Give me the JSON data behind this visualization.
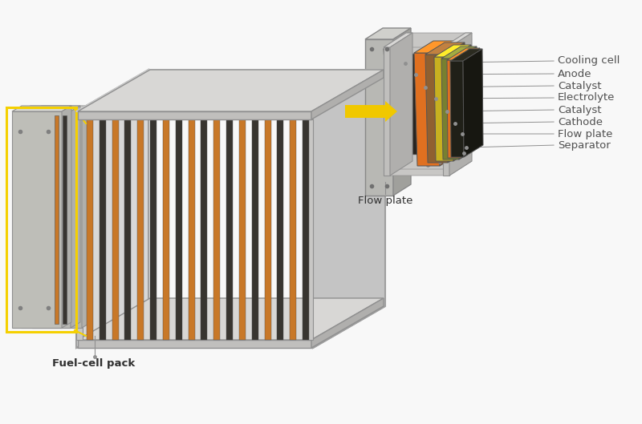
{
  "background_color": "#f8f8f8",
  "fig_width": 8.0,
  "fig_height": 5.29,
  "label_fuel_cell_pack": "Fuel-cell pack",
  "label_flow_plate": "Flow plate",
  "labels_right": [
    "Separator",
    "Flow plate",
    "Cathode",
    "Catalyst",
    "Electrolyte",
    "Catalyst",
    "Anode",
    "Cooling cell"
  ],
  "arrow_color": "#f0c800",
  "frame_color_light": "#c8c8c8",
  "frame_color_dark": "#a0a0a0",
  "plate_orange": "#c87828",
  "plate_dark": "#383530",
  "plate_beige": "#d8cc9a",
  "plate_orange2": "#e07820",
  "plate_brown": "#907040",
  "plate_yellow_green": "#c8b830",
  "plate_olive": "#7a7838",
  "plate_separator": "#282420",
  "plate_flow_plate_gray": "#b0b0a8",
  "leader_color": "#909090",
  "label_color": "#505050",
  "label_fontsize": 9.5
}
